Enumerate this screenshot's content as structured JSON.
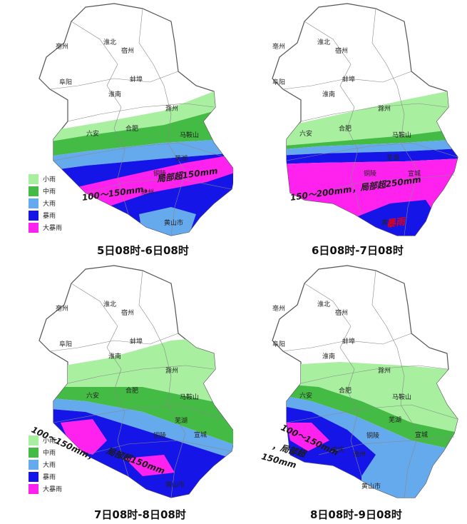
{
  "colors": {
    "light_rain": "#a8f0a0",
    "moderate_rain": "#44bb44",
    "heavy_rain": "#66aaee",
    "rainstorm": "#1515e8",
    "heavy_rainstorm": "#ff22ee",
    "boundary": "#888888"
  },
  "legend": [
    {
      "label": "小雨",
      "color": "#a8f0a0"
    },
    {
      "label": "中雨",
      "color": "#44bb44"
    },
    {
      "label": "大雨",
      "color": "#66aaee"
    },
    {
      "label": "暴雨",
      "color": "#1515e8"
    },
    {
      "label": "大暴雨",
      "color": "#ff22ee"
    }
  ],
  "panels": [
    {
      "caption": "5日08时-6日08时",
      "notes": [
        {
          "text": "局部超150mm",
          "style": "dark"
        },
        {
          "text": "100～150mm，",
          "style": "dark"
        }
      ],
      "cities": [
        "亳州",
        "淮北",
        "宿州",
        "蚌埠",
        "阜阳",
        "淮南",
        "滁州",
        "六安",
        "合肥",
        "马鞍山",
        "芜湖",
        "铜陵",
        "池州",
        "黄山市"
      ]
    },
    {
      "caption": "6日08时-7日08时",
      "notes": [
        {
          "text": "150～200mm，局部超250mm",
          "style": "dark"
        },
        {
          "text": "暴雨",
          "style": "red"
        }
      ],
      "cities": [
        "亳州",
        "淮北",
        "宿州",
        "蚌埠",
        "阜阳",
        "淮南",
        "滁州",
        "六安",
        "合肥",
        "马鞍山",
        "芜湖",
        "铜陵",
        "宣城",
        "黄山"
      ]
    },
    {
      "caption": "7日08时-8日08时",
      "notes": [
        {
          "text": "100～150mm，",
          "style": "dark"
        },
        {
          "text": "局部超150mm",
          "style": "dark"
        }
      ],
      "cities": [
        "亳州",
        "淮北",
        "宿州",
        "蚌埠",
        "阜阳",
        "淮南",
        "滁州",
        "六安",
        "合肥",
        "马鞍山",
        "芜湖",
        "铜陵",
        "宣城",
        "黄山市"
      ]
    },
    {
      "caption": "8日08时-9日08时",
      "notes": [
        {
          "text": "100～150mm",
          "style": "dark"
        },
        {
          "text": "，局部超",
          "style": "dark"
        },
        {
          "text": "150mm",
          "style": "dark"
        }
      ],
      "cities": [
        "亳州",
        "淮北",
        "宿州",
        "蚌埠",
        "阜阳",
        "淮南",
        "滁州",
        "六安",
        "合肥",
        "马鞍山",
        "芜湖",
        "铜陵",
        "宣城",
        "安庆",
        "池州",
        "黄山市"
      ]
    }
  ]
}
